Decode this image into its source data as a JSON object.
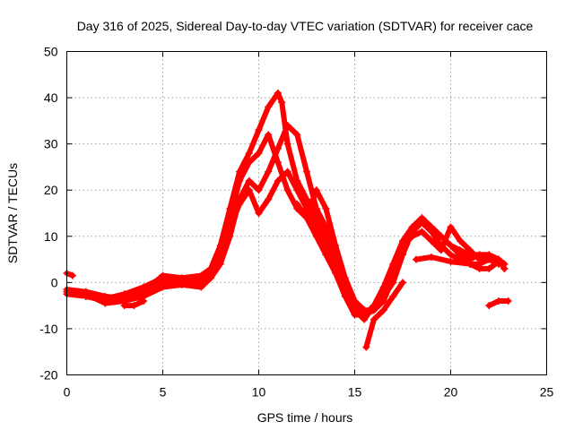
{
  "chart_data": {
    "type": "line",
    "title": "Day 316 of 2025, Sidereal Day-to-day VTEC variation (SDTVAR) for receiver cace",
    "xlabel": "GPS time / hours",
    "ylabel": "SDTVAR / TECUs",
    "xlim": [
      0,
      25
    ],
    "ylim": [
      -20,
      50
    ],
    "xticks": [
      "0",
      "5",
      "10",
      "15",
      "20",
      "25"
    ],
    "yticks": [
      "-20",
      "-10",
      "0",
      "10",
      "20",
      "30",
      "40",
      "50"
    ],
    "grid": true,
    "color": "#ff0000",
    "series": [
      {
        "name": "trace-a",
        "points": [
          [
            0,
            -2
          ],
          [
            1,
            -3
          ],
          [
            2,
            -4
          ],
          [
            3,
            -3
          ],
          [
            4,
            -2
          ],
          [
            5,
            0
          ],
          [
            6,
            0
          ],
          [
            7,
            0
          ],
          [
            7.5,
            2
          ],
          [
            8,
            6
          ],
          [
            8.5,
            14
          ],
          [
            9,
            22
          ],
          [
            9.5,
            26
          ],
          [
            10,
            28
          ],
          [
            10.5,
            32
          ],
          [
            11,
            26
          ],
          [
            11.5,
            20
          ],
          [
            12,
            16
          ],
          [
            12.5,
            14
          ],
          [
            13,
            10
          ],
          [
            13.5,
            6
          ],
          [
            14,
            2
          ],
          [
            14.5,
            -3
          ],
          [
            15,
            -7
          ],
          [
            15.5,
            -7
          ],
          [
            16,
            -5
          ],
          [
            16.5,
            -3
          ],
          [
            17,
            0
          ],
          [
            17.5,
            6
          ],
          [
            18,
            11
          ],
          [
            18.5,
            13
          ],
          [
            19,
            12
          ],
          [
            19.5,
            10
          ],
          [
            20,
            8
          ],
          [
            20.5,
            6
          ],
          [
            21,
            5
          ],
          [
            21.5,
            6
          ],
          [
            22,
            6
          ],
          [
            22.5,
            5
          ],
          [
            22.8,
            4
          ]
        ]
      },
      {
        "name": "trace-b",
        "points": [
          [
            0,
            -2.5
          ],
          [
            1,
            -3
          ],
          [
            2,
            -3.5
          ],
          [
            3,
            -2.5
          ],
          [
            4,
            -1
          ],
          [
            5,
            1
          ],
          [
            6,
            0.5
          ],
          [
            7,
            0.5
          ],
          [
            7.5,
            3
          ],
          [
            8,
            8
          ],
          [
            8.5,
            16
          ],
          [
            9,
            24
          ],
          [
            9.5,
            28
          ],
          [
            10,
            33
          ],
          [
            10.5,
            38
          ],
          [
            11,
            41
          ],
          [
            11.2,
            39
          ],
          [
            11.5,
            30
          ],
          [
            12,
            22
          ],
          [
            12.5,
            18
          ],
          [
            13,
            14
          ],
          [
            13.5,
            9
          ],
          [
            14,
            4
          ],
          [
            14.5,
            -1
          ],
          [
            15,
            -5
          ],
          [
            15.5,
            -7
          ],
          [
            16,
            -6
          ],
          [
            16.5,
            -4
          ],
          [
            17,
            1
          ],
          [
            17.5,
            7
          ],
          [
            18,
            12
          ],
          [
            18.5,
            14
          ],
          [
            19,
            12
          ],
          [
            19.5,
            10
          ],
          [
            20,
            8
          ],
          [
            20.5,
            7
          ],
          [
            21,
            6
          ],
          [
            21.5,
            6
          ],
          [
            22,
            6
          ],
          [
            22.5,
            5
          ],
          [
            22.8,
            3
          ]
        ]
      },
      {
        "name": "trace-c",
        "points": [
          [
            0,
            -2
          ],
          [
            1,
            -2.5
          ],
          [
            2,
            -4.5
          ],
          [
            3,
            -4
          ],
          [
            4,
            -3
          ],
          [
            5,
            -1
          ],
          [
            6,
            -0.5
          ],
          [
            7,
            -1
          ],
          [
            7.5,
            1
          ],
          [
            8,
            4
          ],
          [
            8.5,
            10
          ],
          [
            9,
            18
          ],
          [
            9.5,
            22
          ],
          [
            10,
            20
          ],
          [
            10.5,
            24
          ],
          [
            11,
            29
          ],
          [
            11.5,
            34
          ],
          [
            12,
            32
          ],
          [
            12.5,
            24
          ],
          [
            13,
            16
          ],
          [
            13.5,
            12
          ],
          [
            14,
            6
          ],
          [
            14.5,
            0
          ],
          [
            15,
            -4
          ],
          [
            15.5,
            -6
          ],
          [
            16,
            -6
          ],
          [
            16.5,
            -2
          ],
          [
            17,
            3
          ],
          [
            17.5,
            8
          ],
          [
            18,
            10
          ],
          [
            18.5,
            11
          ],
          [
            19,
            9
          ],
          [
            19.5,
            7
          ],
          [
            20,
            12
          ],
          [
            20.5,
            9
          ],
          [
            21,
            7
          ],
          [
            21.5,
            5
          ],
          [
            22,
            5
          ],
          [
            22.5,
            4
          ],
          [
            22.8,
            4
          ]
        ]
      },
      {
        "name": "trace-d",
        "points": [
          [
            0,
            -1.5
          ],
          [
            1,
            -2
          ],
          [
            2,
            -3
          ],
          [
            3,
            -3.5
          ],
          [
            4,
            -2
          ],
          [
            5,
            1.5
          ],
          [
            6,
            1
          ],
          [
            7,
            1.5
          ],
          [
            7.5,
            3
          ],
          [
            8,
            7
          ],
          [
            8.5,
            12
          ],
          [
            9,
            17
          ],
          [
            9.5,
            20
          ],
          [
            10,
            15
          ],
          [
            10.5,
            18
          ],
          [
            11,
            22
          ],
          [
            11.5,
            24
          ],
          [
            12,
            20
          ],
          [
            12.5,
            16
          ],
          [
            13,
            12
          ],
          [
            13.5,
            8
          ],
          [
            14,
            3
          ],
          [
            14.5,
            -2
          ],
          [
            15,
            -6
          ],
          [
            15.5,
            -8
          ],
          [
            16,
            -5
          ],
          [
            16.5,
            -1
          ],
          [
            17,
            4
          ],
          [
            17.5,
            9
          ],
          [
            18,
            12
          ],
          [
            18.5,
            13
          ],
          [
            19,
            11
          ],
          [
            19.5,
            8
          ],
          [
            20,
            6
          ],
          [
            20.5,
            5
          ],
          [
            21,
            4
          ],
          [
            21.5,
            4
          ],
          [
            22,
            5
          ],
          [
            22.5,
            5
          ],
          [
            22.8,
            3
          ]
        ]
      },
      {
        "name": "trace-e",
        "points": [
          [
            12,
            17
          ],
          [
            12.5,
            14
          ],
          [
            13,
            20
          ],
          [
            13.5,
            16
          ],
          [
            14,
            8
          ],
          [
            14.5,
            1
          ],
          [
            15,
            -4
          ]
        ]
      },
      {
        "name": "trace-f",
        "points": [
          [
            15.6,
            -14
          ],
          [
            16,
            -8
          ],
          [
            16.5,
            -6
          ],
          [
            17,
            -3
          ],
          [
            17.5,
            0
          ]
        ]
      },
      {
        "name": "trace-g",
        "points": [
          [
            18.2,
            5
          ],
          [
            19,
            5.5
          ],
          [
            20,
            4.5
          ],
          [
            21,
            4
          ],
          [
            21.5,
            3
          ],
          [
            22,
            3
          ],
          [
            22.5,
            4.5
          ]
        ]
      },
      {
        "name": "trace-h",
        "points": [
          [
            22,
            -5
          ],
          [
            22.5,
            -4
          ],
          [
            23,
            -4
          ]
        ]
      },
      {
        "name": "trace-i",
        "points": [
          [
            0,
            2
          ],
          [
            0.3,
            1.5
          ]
        ]
      },
      {
        "name": "trace-j",
        "points": [
          [
            3,
            -5
          ],
          [
            3.5,
            -5
          ],
          [
            4,
            -4
          ]
        ]
      }
    ]
  }
}
